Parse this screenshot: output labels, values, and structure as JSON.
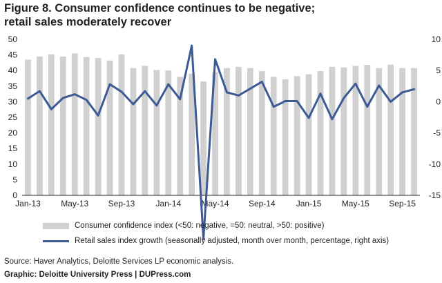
{
  "title_lines": [
    "Figure 8. Consumer confidence continues to be negative;",
    "retail sales moderately recover"
  ],
  "legend": {
    "bars": "Consumer confidence index (<50: negative, =50: neutral, >50: positive)",
    "line": "Retail sales index growth (seasonally adjusted, month over month, percentage, right axis)"
  },
  "source": "Source: Haver Analytics, Deloitte Services LP economic analysis.",
  "graphic_credit": "Graphic: Deloitte University Press  |  DUPress.com",
  "colors": {
    "bars": "#d0d0d0",
    "line": "#3d5a94",
    "text": "#231f20"
  },
  "chart_data": {
    "type": "bar+line",
    "x": [
      "Jan-13",
      "Feb-13",
      "Mar-13",
      "Apr-13",
      "May-13",
      "Jun-13",
      "Jul-13",
      "Aug-13",
      "Sep-13",
      "Oct-13",
      "Nov-13",
      "Dec-13",
      "Jan-14",
      "Feb-14",
      "Mar-14",
      "Apr-14",
      "May-14",
      "Jun-14",
      "Jul-14",
      "Aug-14",
      "Sep-14",
      "Oct-14",
      "Nov-14",
      "Dec-14",
      "Jan-15",
      "Feb-15",
      "Mar-15",
      "Apr-15",
      "May-15",
      "Jun-15",
      "Jul-15",
      "Aug-15",
      "Sep-15",
      "Oct-15"
    ],
    "x_tick_labels": [
      "Jan-13",
      "May-13",
      "Sep-13",
      "Jan-14",
      "May-14",
      "Sep-14",
      "Jan-15",
      "May-15",
      "Sep-15"
    ],
    "series": [
      {
        "name": "Consumer confidence index (<50: negative, =50: neutral, >50: positive)",
        "type": "bar",
        "axis": "left",
        "values": [
          43.5,
          44.5,
          45.2,
          44.5,
          45.5,
          44.3,
          44.0,
          43.2,
          45.2,
          40.8,
          41.5,
          40.2,
          40.0,
          38.0,
          39.0,
          36.5,
          39.5,
          40.8,
          41.2,
          40.8,
          39.8,
          38.0,
          37.2,
          38.2,
          38.8,
          39.8,
          41.2,
          41.0,
          41.5,
          41.8,
          40.8,
          41.9,
          40.8,
          40.8
        ]
      },
      {
        "name": "Retail sales index growth (seasonally adjusted, month over month, percentage, right axis)",
        "type": "line",
        "axis": "right",
        "values": [
          0.5,
          1.7,
          -1.2,
          0.6,
          1.2,
          0.3,
          -2.2,
          2.8,
          1.6,
          -0.4,
          1.7,
          -0.6,
          2.8,
          0.4,
          9.0,
          -22.0,
          6.8,
          1.5,
          1.0,
          2.1,
          3.2,
          -0.8,
          0.1,
          0.1,
          -2.6,
          1.3,
          -2.8,
          0.6,
          2.9,
          -0.8,
          2.6,
          0.0,
          1.5,
          2.0
        ]
      }
    ],
    "y_left": {
      "range": [
        0,
        50
      ],
      "ticks": [
        "0",
        "5",
        "10",
        "15",
        "20",
        "25",
        "30",
        "35",
        "40",
        "45",
        "50"
      ]
    },
    "y_right": {
      "range": [
        -15,
        10
      ],
      "ticks": [
        "-15",
        "-10",
        "-5",
        "0",
        "5",
        "10"
      ]
    },
    "grid": false,
    "legend_position": "bottom"
  }
}
